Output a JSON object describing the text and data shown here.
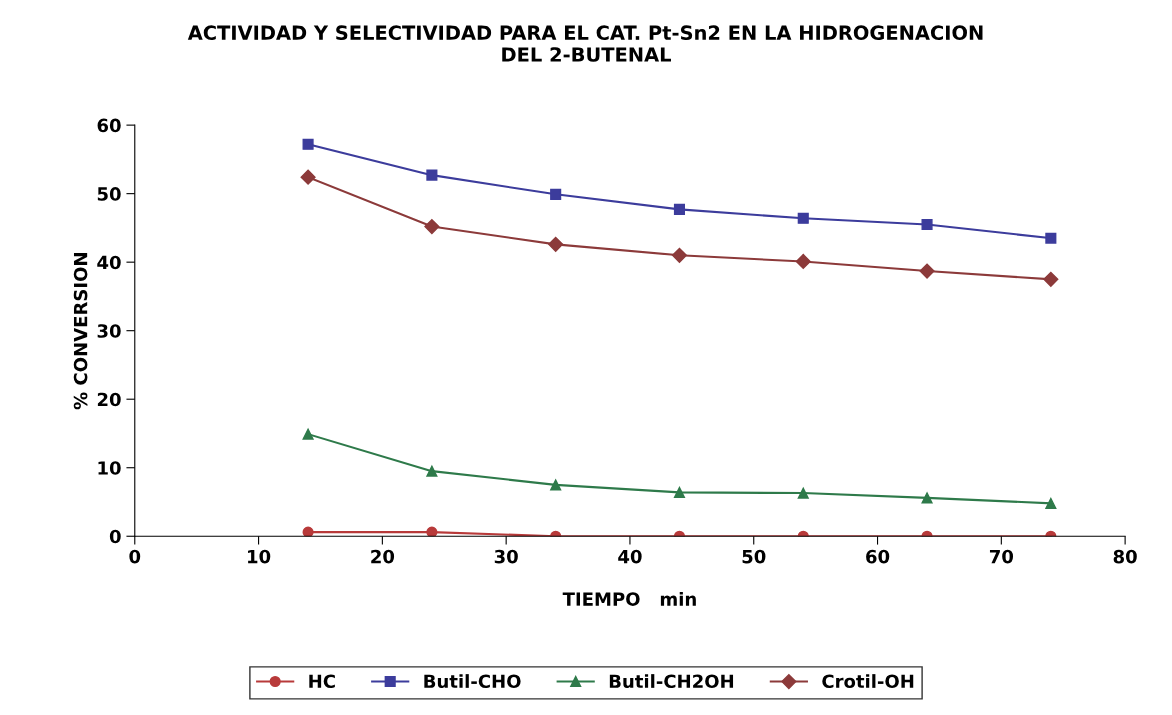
{
  "chart_data": {
    "type": "line",
    "title": "ACTIVIDAD Y SELECTIVIDAD PARA EL CAT. Pt-Sn2 EN LA HIDROGENACION\nDEL 2-BUTENAL",
    "xlabel": "TIEMPO   min",
    "ylabel": "% CONVERSION",
    "x": [
      14,
      24,
      34,
      44,
      54,
      64,
      74
    ],
    "series": [
      {
        "name": "HC",
        "color": "#b83a3a",
        "marker": "circle",
        "values": [
          0.6,
          0.6,
          0,
          0,
          0,
          0,
          0
        ]
      },
      {
        "name": "Butil-CHO",
        "color": "#3c3c9c",
        "marker": "square",
        "values": [
          57.2,
          52.7,
          49.9,
          47.7,
          46.4,
          45.5,
          43.5
        ]
      },
      {
        "name": "Butil-CH2OH",
        "color": "#2e7a4a",
        "marker": "triangle",
        "values": [
          14.9,
          9.5,
          7.5,
          6.4,
          6.3,
          5.6,
          4.8
        ]
      },
      {
        "name": "Crotil-OH",
        "color": "#8c3a3a",
        "marker": "diamond",
        "values": [
          52.4,
          45.2,
          42.6,
          41.0,
          40.1,
          38.7,
          37.5
        ]
      }
    ],
    "xlim": [
      0,
      80
    ],
    "xticks": [
      0,
      10,
      20,
      30,
      40,
      50,
      60,
      70,
      80
    ],
    "ylim": [
      0,
      60
    ],
    "yticks": [
      0,
      10,
      20,
      30,
      40,
      50,
      60
    ],
    "grid": false,
    "legend": "bottom",
    "line_style": "solid"
  }
}
